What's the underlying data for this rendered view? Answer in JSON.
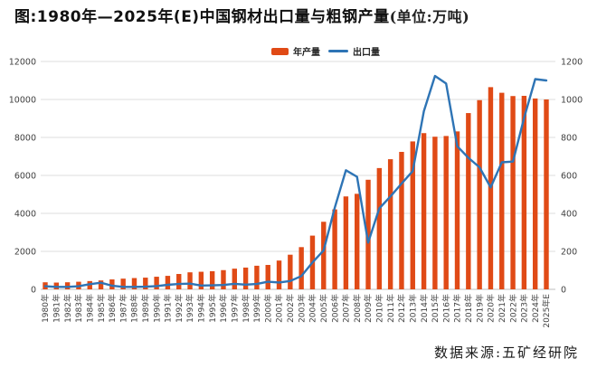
{
  "title": {
    "main": "图:1980年—2025年(E)中国钢材出口量与粗钢产量",
    "unit": "(单位:万吨)"
  },
  "source": "数据来源:五矿经研院",
  "chart_data": {
    "type": "bar+line",
    "legend_position": "top-center",
    "grid": "horizontal",
    "grid_color": "#dcdcdc",
    "axis_color": "#bfbfbf",
    "tick_color": "#404040",
    "left_axis": {
      "min": 0,
      "max": 12000,
      "step": 2000
    },
    "right_axis": {
      "min": 0,
      "max": 1200,
      "step": 200
    },
    "categories": [
      "1980年",
      "1981年",
      "1982年",
      "1983年",
      "1984年",
      "1985年",
      "1986年",
      "1987年",
      "1988年",
      "1989年",
      "1990年",
      "1991年",
      "1992年",
      "1993年",
      "1994年",
      "1995年",
      "1996年",
      "1997年",
      "1998年",
      "1999年",
      "2000年",
      "2001年",
      "2002年",
      "2003年",
      "2004年",
      "2005年",
      "2006年",
      "2007年",
      "2008年",
      "2009年",
      "2010年",
      "2011年",
      "2012年",
      "2013年",
      "2014年",
      "2015年",
      "2016年",
      "2017年",
      "2018年",
      "2019年",
      "2020年",
      "2021年",
      "2022年",
      "2023年",
      "2024年",
      "2025年E"
    ],
    "series": [
      {
        "name": "年产量",
        "type": "bar",
        "axis": "left",
        "color": "#e04a16",
        "values": [
          371,
          356,
          372,
          400,
          435,
          468,
          522,
          563,
          594,
          616,
          664,
          710,
          809,
          896,
          926,
          954,
          1012,
          1089,
          1146,
          1243,
          1285,
          1516,
          1824,
          2223,
          2829,
          3558,
          4210,
          4893,
          5031,
          5771,
          6387,
          6853,
          7239,
          7790,
          8227,
          8038,
          8076,
          8317,
          9283,
          9963,
          10648,
          10352,
          10180,
          10191,
          10051,
          10000
        ]
      },
      {
        "name": "出口量",
        "type": "line",
        "axis": "right",
        "color": "#2e74b5",
        "values": [
          16,
          13,
          13,
          16,
          27,
          35,
          19,
          13,
          13,
          14,
          17,
          24,
          28,
          30,
          20,
          21,
          23,
          29,
          25,
          28,
          40,
          36,
          44,
          70,
          142,
          205,
          430,
          627,
          593,
          246,
          426,
          489,
          557,
          623,
          938,
          1124,
          1084,
          754,
          693,
          643,
          537,
          669,
          673,
          903,
          1107,
          1100
        ]
      }
    ]
  }
}
